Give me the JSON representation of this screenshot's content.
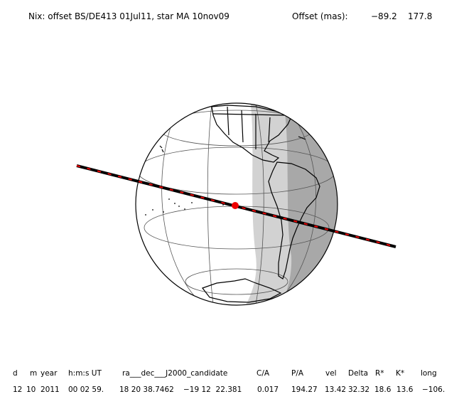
{
  "header": {
    "title": "Nix: offset BS/DE413 01Jul11, star MA 10nov09",
    "offset_label": "Offset (mas):",
    "offset_values": [
      "−89.2",
      "177.8"
    ]
  },
  "table": {
    "columns": [
      "d",
      "m",
      "year",
      "h:m:s UT",
      "ra___dec___J2000_candidate",
      "C/A",
      "P/A",
      "vel",
      "Delta",
      "R*",
      "K*",
      "long"
    ],
    "rows": [
      [
        "12",
        "10",
        "2011",
        "00 02 59.",
        "18 20 38.7462",
        "−19 12  22.381",
        "0.017",
        "194.27",
        "13.42",
        "32.32",
        "18.6",
        "13.6",
        "−106."
      ]
    ]
  }
}
